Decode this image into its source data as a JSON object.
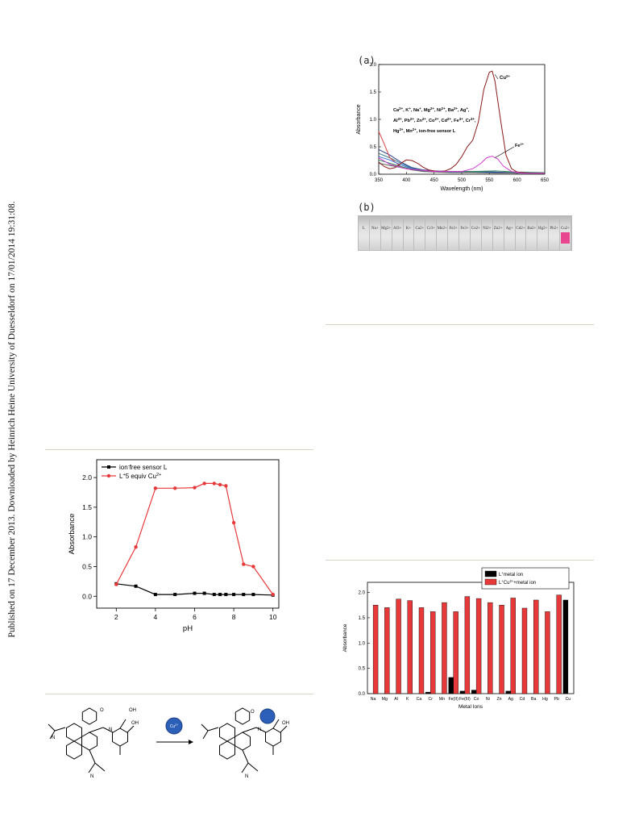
{
  "side_note": "Published on 17 December 2013. Downloaded by Heinrich Heine University of Duesseldorf on 17/01/2014 19:31:08.",
  "panels": {
    "a": "(a)",
    "b": "(b)"
  },
  "chart_data": [
    {
      "type": "line",
      "panel": "a",
      "xlabel": "Wavelength (nm)",
      "ylabel": "Absorbance",
      "xlim": [
        350,
        650
      ],
      "ylim": [
        0,
        2.0
      ],
      "x_ticks": [
        "350",
        "400",
        "450",
        "500",
        "550",
        "600",
        "650"
      ],
      "y_ticks": [
        "0.0",
        "0.5",
        "1.0",
        "1.5",
        "2.0"
      ],
      "annotation_lines": [
        "Ca2+, K+, Na+, Mg2+, Ni2+, Ba2+, Ag+,",
        "Al3+, Pb2+, Zn2+, Co2+, Cd2+, Fe3+, Cr3+,",
        "Hg2+, Mn2+, ion-free sensor L"
      ],
      "series": [
        {
          "name": "Cu2+",
          "color": "#8b1a1a",
          "x": [
            350,
            360,
            370,
            380,
            390,
            400,
            410,
            420,
            430,
            440,
            450,
            460,
            470,
            480,
            490,
            500,
            510,
            520,
            530,
            540,
            550,
            555,
            560,
            570,
            580,
            590,
            600,
            620,
            650
          ],
          "y": [
            0.22,
            0.14,
            0.1,
            0.12,
            0.2,
            0.26,
            0.25,
            0.2,
            0.13,
            0.08,
            0.06,
            0.05,
            0.06,
            0.1,
            0.18,
            0.32,
            0.5,
            0.62,
            0.95,
            1.55,
            1.86,
            1.88,
            1.7,
            1.0,
            0.35,
            0.1,
            0.04,
            0.02,
            0.02
          ]
        },
        {
          "name": "Fe2+",
          "color": "#d63ad6",
          "x": [
            350,
            370,
            400,
            450,
            500,
            520,
            535,
            545,
            555,
            565,
            575,
            590,
            610,
            650
          ],
          "y": [
            0.3,
            0.18,
            0.1,
            0.05,
            0.05,
            0.1,
            0.2,
            0.3,
            0.33,
            0.28,
            0.15,
            0.05,
            0.02,
            0.02
          ]
        },
        {
          "name": "",
          "color": "#2b3f8f",
          "x": [
            350,
            370,
            390,
            410,
            430,
            450,
            480,
            520,
            560,
            600,
            650
          ],
          "y": [
            0.45,
            0.35,
            0.22,
            0.12,
            0.08,
            0.06,
            0.05,
            0.05,
            0.04,
            0.03,
            0.03
          ]
        },
        {
          "name": "",
          "color": "#3a7a8a",
          "x": [
            350,
            370,
            390,
            410,
            430,
            450,
            480,
            520,
            560,
            600,
            650
          ],
          "y": [
            0.38,
            0.3,
            0.2,
            0.11,
            0.07,
            0.05,
            0.04,
            0.04,
            0.03,
            0.03,
            0.02
          ]
        },
        {
          "name": "",
          "color": "#d84040",
          "x": [
            350,
            360,
            370,
            390,
            410,
            430,
            450,
            480,
            520,
            560,
            600,
            650
          ],
          "y": [
            0.78,
            0.55,
            0.3,
            0.14,
            0.08,
            0.06,
            0.05,
            0.04,
            0.03,
            0.03,
            0.02,
            0.02
          ]
        },
        {
          "name": "",
          "color": "#3b6fd8",
          "x": [
            350,
            370,
            390,
            410,
            430,
            450,
            480,
            520,
            560,
            600,
            650
          ],
          "y": [
            0.32,
            0.26,
            0.17,
            0.1,
            0.06,
            0.05,
            0.04,
            0.03,
            0.03,
            0.02,
            0.02
          ]
        },
        {
          "name": "",
          "color": "#2e8b57",
          "x": [
            350,
            370,
            390,
            410,
            430,
            450,
            480,
            520,
            560,
            600,
            650
          ],
          "y": [
            0.26,
            0.2,
            0.14,
            0.09,
            0.06,
            0.05,
            0.05,
            0.05,
            0.06,
            0.04,
            0.03
          ]
        },
        {
          "name": "",
          "color": "#606060",
          "x": [
            350,
            370,
            390,
            410,
            430,
            450,
            480,
            520,
            560,
            600,
            650
          ],
          "y": [
            0.2,
            0.16,
            0.12,
            0.08,
            0.05,
            0.04,
            0.03,
            0.03,
            0.02,
            0.02,
            0.02
          ]
        }
      ]
    },
    {
      "type": "line",
      "panel": "pH",
      "xlabel": "pH",
      "ylabel": "Absorbance",
      "xlim": [
        1,
        10.3
      ],
      "ylim": [
        -0.2,
        2.3
      ],
      "x_ticks": [
        "2",
        "4",
        "6",
        "8",
        "10"
      ],
      "y_ticks": [
        "0.0",
        "0.5",
        "1.0",
        "1.5",
        "2.0"
      ],
      "legend_position": "top-left",
      "series": [
        {
          "name": "ion-free sensor L",
          "color": "#000000",
          "x": [
            2,
            3,
            4,
            5,
            6,
            6.5,
            7,
            7.3,
            7.6,
            8,
            8.5,
            9,
            10
          ],
          "y": [
            0.21,
            0.17,
            0.03,
            0.03,
            0.05,
            0.05,
            0.03,
            0.03,
            0.03,
            0.03,
            0.03,
            0.03,
            0.02
          ]
        },
        {
          "name": "L+5 equiv Cu2+",
          "color": "#e8393a",
          "x": [
            2,
            3,
            4,
            5,
            6,
            6.5,
            7,
            7.3,
            7.6,
            8,
            8.5,
            9,
            10
          ],
          "y": [
            0.2,
            0.83,
            1.82,
            1.82,
            1.83,
            1.9,
            1.9,
            1.88,
            1.86,
            1.24,
            0.54,
            0.5,
            0.03
          ]
        }
      ]
    },
    {
      "type": "bar",
      "panel": "metal ions",
      "xlabel": "Metal Ions",
      "ylabel": "Absorbance",
      "ylim": [
        0,
        2.2
      ],
      "y_ticks": [
        "0.0",
        "0.5",
        "1.0",
        "1.5",
        "2.0"
      ],
      "legend_position": "top-right",
      "categories": [
        "Na",
        "Mg",
        "Al",
        "K",
        "Ca",
        "Cr",
        "Mn",
        "Fe(II)",
        "Fe(III)",
        "Co",
        "Ni",
        "Zn",
        "Ag",
        "Cd",
        "Ba",
        "Hg",
        "Pb",
        "Cu"
      ],
      "series": [
        {
          "name": "L+metal ion",
          "color": "#000000",
          "values": [
            0.0,
            0.0,
            0.0,
            0.0,
            0.0,
            0.03,
            0.0,
            0.32,
            0.05,
            0.07,
            0.0,
            0.0,
            0.05,
            0.0,
            0.0,
            0.0,
            0.0,
            1.85
          ]
        },
        {
          "name": "L+Cu2++metal ion",
          "color": "#e8393a",
          "values": [
            1.75,
            1.7,
            1.87,
            1.84,
            1.7,
            1.62,
            1.8,
            1.62,
            1.92,
            1.88,
            1.8,
            1.75,
            1.89,
            1.69,
            1.85,
            1.62,
            1.95,
            0.0
          ]
        }
      ]
    }
  ],
  "vials": {
    "labels": [
      "L",
      "Na+",
      "Mg2+",
      "Al3+",
      "K+",
      "Ca2+",
      "Cr3+",
      "Mn2+",
      "Fe2+",
      "Fe3+",
      "Co2+",
      "Ni2+",
      "Zn2+",
      "Ag+",
      "Cd2+",
      "Ba2+",
      "Hg2+",
      "Pb2+",
      "Cu2+"
    ],
    "highlight_index": 18,
    "highlight_color": "#e8478f"
  },
  "scheme": {
    "reagent": "Cu2+",
    "groups": [
      "OH",
      "OH",
      "O",
      "N",
      "N",
      "N",
      "O",
      "N",
      "OH",
      "N"
    ]
  }
}
